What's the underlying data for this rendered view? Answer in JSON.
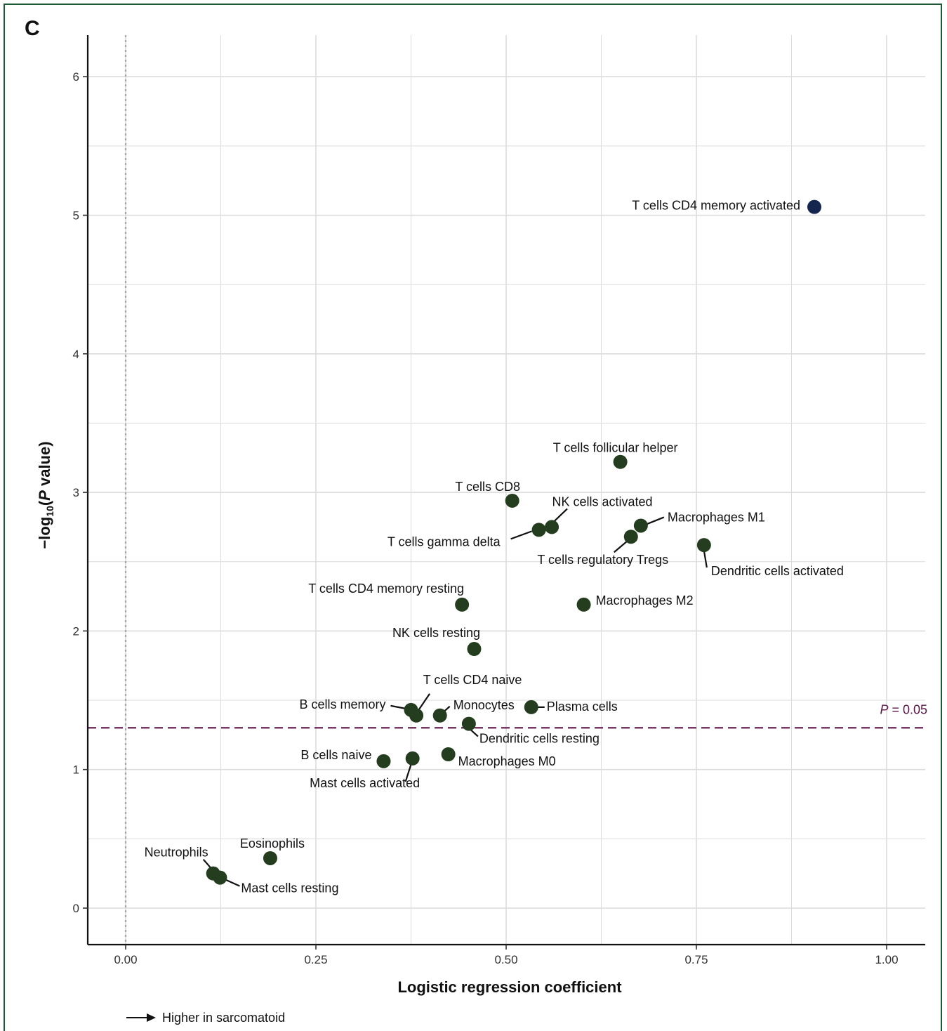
{
  "panel_label": "C",
  "footnote": "Higher in sarcomatoid",
  "colors": {
    "point": "#243d1f",
    "highlight": "#14264d",
    "threshold": "#5c1448",
    "grid": "#dcdcdc",
    "border": "#1f5a36"
  },
  "chart_data": {
    "type": "scatter",
    "xlabel": "Logistic regression coefficient",
    "ylabel_prefix": "−log",
    "ylabel_sub": "10",
    "ylabel_open": "(",
    "ylabel_italic": "P",
    "ylabel_suffix": " value)",
    "xlim": [
      -0.05,
      1.05
    ],
    "ylim": [
      -0.25,
      6.3
    ],
    "xticks": [
      0.0,
      0.25,
      0.5,
      0.75,
      1.0
    ],
    "xtick_labels": [
      "0.00",
      "0.25",
      "0.50",
      "0.75",
      "1.00"
    ],
    "yticks": [
      0,
      1,
      2,
      3,
      4,
      5,
      6
    ],
    "ytick_labels": [
      "0",
      "1",
      "2",
      "3",
      "4",
      "5",
      "6"
    ],
    "grid": true,
    "reference_line_x": 0,
    "threshold": {
      "y": 1.301,
      "label_italic": "P",
      "label_rest": " = 0.05"
    },
    "points": [
      {
        "label": "T cells CD4 memory activated",
        "x": 0.905,
        "y": 5.06,
        "highlight": true
      },
      {
        "label": "T cells follicular helper",
        "x": 0.65,
        "y": 3.22
      },
      {
        "label": "T cells CD8",
        "x": 0.508,
        "y": 2.94
      },
      {
        "label": "NK cells activated",
        "x": 0.56,
        "y": 2.75
      },
      {
        "label": "T cells gamma delta",
        "x": 0.543,
        "y": 2.73
      },
      {
        "label": "Macrophages M1",
        "x": 0.677,
        "y": 2.76
      },
      {
        "label": "T cells regulatory Tregs",
        "x": 0.664,
        "y": 2.68
      },
      {
        "label": "Dendritic cells activated",
        "x": 0.76,
        "y": 2.62
      },
      {
        "label": "T cells CD4 memory resting",
        "x": 0.442,
        "y": 2.19
      },
      {
        "label": "Macrophages M2",
        "x": 0.602,
        "y": 2.19
      },
      {
        "label": "NK cells resting",
        "x": 0.458,
        "y": 1.87
      },
      {
        "label": "T cells CD4 naive",
        "x": 0.382,
        "y": 1.39
      },
      {
        "label": "B cells memory",
        "x": 0.375,
        "y": 1.43
      },
      {
        "label": "Monocytes",
        "x": 0.413,
        "y": 1.39
      },
      {
        "label": "Plasma cells",
        "x": 0.533,
        "y": 1.45
      },
      {
        "label": "Dendritic cells resting",
        "x": 0.451,
        "y": 1.33
      },
      {
        "label": "B cells naive",
        "x": 0.339,
        "y": 1.06
      },
      {
        "label": "Mast cells activated",
        "x": 0.377,
        "y": 1.08
      },
      {
        "label": "Macrophages M0",
        "x": 0.424,
        "y": 1.11
      },
      {
        "label": "Eosinophils",
        "x": 0.19,
        "y": 0.36
      },
      {
        "label": "Neutrophils",
        "x": 0.115,
        "y": 0.25
      },
      {
        "label": "Mast cells resting",
        "x": 0.124,
        "y": 0.22
      }
    ]
  }
}
